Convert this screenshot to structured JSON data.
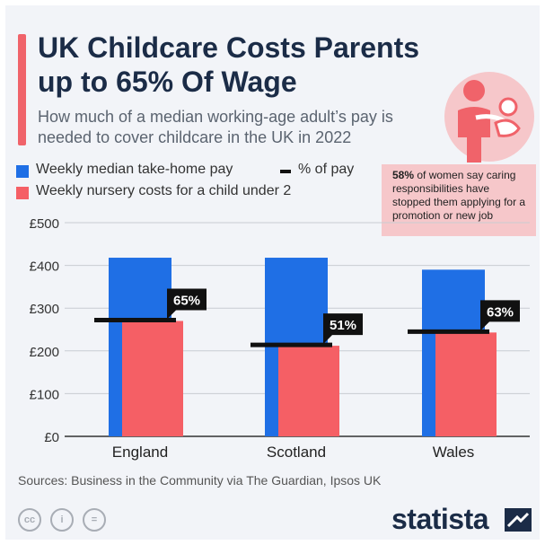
{
  "title": "UK Childcare Costs Parents up to 65% Of Wage",
  "subtitle": "How much of a median working-age adult’s pay is needed to cover childcare in the UK in 2022",
  "legend": {
    "pay": "Weekly median take-home pay",
    "nursery": "Weekly nursery costs for a child under 2",
    "pct": "% of pay"
  },
  "callout": {
    "strong": "58%",
    "text": " of women say caring responsibilities have stopped them applying for a promotion or new job"
  },
  "source": "Sources: Business in the Community via The Guardian, Ipsos UK",
  "brand": "statista",
  "colors": {
    "pay": "#1f6fe5",
    "nursery": "#f55f65",
    "title": "#1b2c47",
    "accent": "#f0636a",
    "callout_bg": "#f6c7ca"
  },
  "icons": [
    "caregiver-with-child-icon",
    "creative-commons-icon",
    "attribution-icon",
    "no-derivatives-icon",
    "statista-logo-icon"
  ],
  "chart_data": {
    "type": "bar",
    "categories": [
      "England",
      "Scotland",
      "Wales"
    ],
    "series": [
      {
        "name": "Weekly median take-home pay",
        "values": [
          418,
          418,
          390
        ]
      },
      {
        "name": "Weekly nursery costs for a child under 2",
        "values": [
          270,
          212,
          243
        ]
      }
    ],
    "percent_of_pay": [
      65,
      51,
      63
    ],
    "percent_labels": [
      "65%",
      "51%",
      "63%"
    ],
    "ylim": [
      0,
      500
    ],
    "yticks": [
      0,
      100,
      200,
      300,
      400,
      500
    ],
    "ytick_labels": [
      "£0",
      "£100",
      "£200",
      "£300",
      "£400",
      "£500"
    ],
    "grid": true
  }
}
